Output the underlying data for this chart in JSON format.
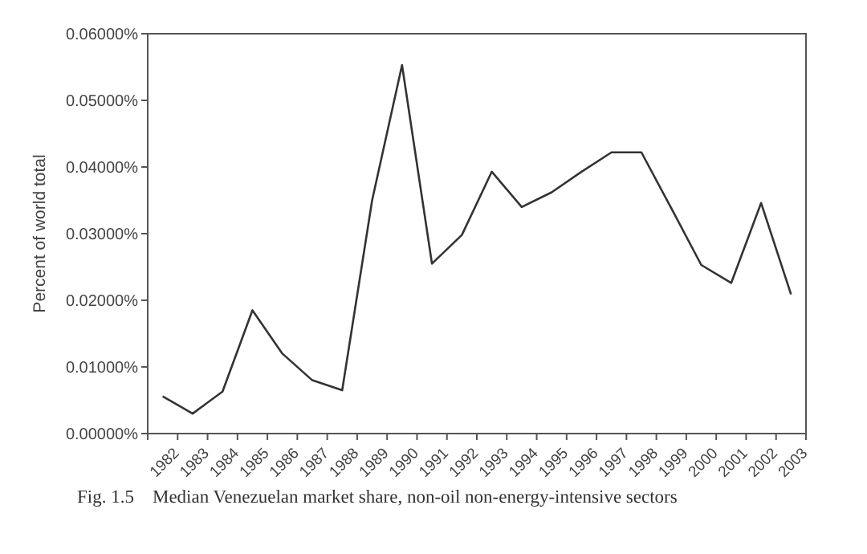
{
  "chart_data": {
    "type": "line",
    "ylabel": "Percent of world total",
    "annotations": [
      "Fig. 1.5    Median Venezuelan market share, non-oil non-energy-intensive sectors"
    ],
    "categories": [
      "1982",
      "1983",
      "1984",
      "1985",
      "1986",
      "1987",
      "1988",
      "1989",
      "1990",
      "1991",
      "1992",
      "1993",
      "1994",
      "1995",
      "1996",
      "1997",
      "1998",
      "1999",
      "2000",
      "2001",
      "2002",
      "2003"
    ],
    "series": [
      {
        "color": "#333333",
        "values": [
          0.0056,
          0.003,
          0.0063,
          0.0185,
          0.012,
          0.008,
          0.0065,
          0.035,
          0.0553,
          0.0255,
          0.0298,
          0.0393,
          0.034,
          0.0362,
          0.0393,
          0.0422,
          0.0422,
          0.0338,
          0.0253,
          0.0226,
          0.0346,
          0.0209
        ]
      }
    ],
    "ylim": [
      0,
      0.06
    ],
    "yticks": [
      {
        "value": 0,
        "label": "0.00000%"
      },
      {
        "value": 0.01,
        "label": "0.01000%"
      },
      {
        "value": 0.02,
        "label": "0.02000%"
      },
      {
        "value": 0.03,
        "label": "0.03000%"
      },
      {
        "value": 0.04,
        "label": "0.04000%"
      },
      {
        "value": 0.05,
        "label": "0.05000%"
      },
      {
        "value": 0.06,
        "label": "0.06000%"
      }
    ],
    "grid": false,
    "marker": "none",
    "line_style": "solid"
  }
}
